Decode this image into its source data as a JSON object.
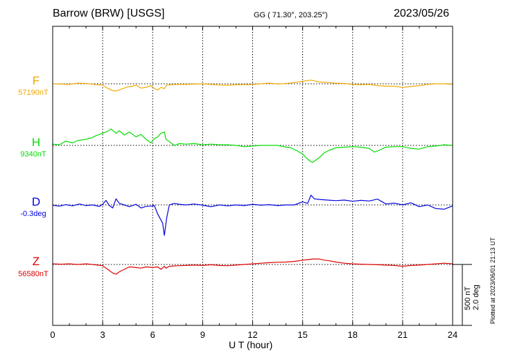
{
  "header": {
    "station": "Barrow (BRW)  [USGS]",
    "coords": "GG ( 71.30°, 203.25°)",
    "date": "2023/05/26"
  },
  "footer": {
    "plotted": "Plotted at 2023/06/01 21:13 UT",
    "scale_nt": "500 nT",
    "scale_deg": "2.0 deg"
  },
  "chart_data": {
    "type": "line",
    "xlabel": "U T (hour)",
    "xlim": [
      0,
      24
    ],
    "xticks": [
      0,
      3,
      6,
      9,
      12,
      15,
      18,
      21,
      24
    ],
    "grid": true,
    "series": [
      {
        "name": "F",
        "baseline_label": "57190nT",
        "color": "#f0a800",
        "x": [
          0,
          0.5,
          1,
          1.5,
          2,
          2.5,
          3,
          3.2,
          3.5,
          3.7,
          3.9,
          4.2,
          4.5,
          4.8,
          5,
          5.3,
          5.6,
          5.9,
          6.1,
          6.3,
          6.5,
          6.7,
          6.8,
          7,
          7.5,
          8,
          8.5,
          9,
          9.5,
          10,
          10.5,
          11,
          11.5,
          12,
          12.5,
          13,
          13.5,
          14,
          14.5,
          15,
          15.5,
          16,
          16.5,
          17,
          17.5,
          18,
          18.5,
          19,
          19.5,
          20,
          20.5,
          21,
          21.5,
          22,
          22.5,
          23,
          23.5,
          24
        ],
        "y": [
          57190,
          57188,
          57185,
          57195,
          57192,
          57185,
          57180,
          57160,
          57140,
          57130,
          57135,
          57150,
          57165,
          57170,
          57180,
          57155,
          57160,
          57175,
          57150,
          57140,
          57160,
          57150,
          57175,
          57182,
          57185,
          57185,
          57188,
          57190,
          57185,
          57180,
          57178,
          57182,
          57182,
          57185,
          57190,
          57195,
          57188,
          57192,
          57200,
          57210,
          57220,
          57205,
          57200,
          57195,
          57192,
          57185,
          57182,
          57185,
          57175,
          57170,
          57170,
          57160,
          57168,
          57175,
          57185,
          57190,
          57190,
          57185
        ]
      },
      {
        "name": "H",
        "baseline_label": "9340nT",
        "color": "#00dd00",
        "x": [
          0,
          0.4,
          0.8,
          1.2,
          1.5,
          2,
          2.3,
          2.6,
          3,
          3.3,
          3.5,
          3.8,
          4,
          4.3,
          4.6,
          5,
          5.3,
          5.6,
          5.9,
          6.1,
          6.3,
          6.5,
          6.7,
          6.8,
          7,
          7.3,
          7.6,
          8,
          8.5,
          9,
          9.5,
          10,
          10.5,
          11,
          11.5,
          12,
          12.5,
          13,
          13.5,
          14,
          14.3,
          14.6,
          15,
          15.2,
          15.4,
          15.6,
          15.8,
          16,
          16.3,
          16.6,
          17,
          17.5,
          18,
          18.5,
          19,
          19.3,
          19.6,
          20,
          20.5,
          21,
          21.5,
          22,
          22.5,
          23,
          23.5,
          24
        ],
        "y": [
          9350,
          9345,
          9375,
          9360,
          9380,
          9390,
          9400,
          9420,
          9440,
          9455,
          9475,
          9440,
          9460,
          9425,
          9450,
          9410,
          9430,
          9390,
          9360,
          9395,
          9410,
          9440,
          9450,
          9390,
          9370,
          9340,
          9355,
          9350,
          9355,
          9345,
          9350,
          9345,
          9345,
          9340,
          9330,
          9335,
          9340,
          9340,
          9340,
          9325,
          9320,
          9300,
          9270,
          9240,
          9215,
          9200,
          9220,
          9240,
          9280,
          9300,
          9320,
          9325,
          9330,
          9325,
          9315,
          9285,
          9300,
          9325,
          9330,
          9330,
          9315,
          9310,
          9330,
          9335,
          9345,
          9340
        ]
      },
      {
        "name": "D",
        "baseline_label": "-0.3deg",
        "color": "#0000dd",
        "x": [
          0,
          0.4,
          0.8,
          1.2,
          1.6,
          2,
          2.4,
          2.8,
          3,
          3.2,
          3.4,
          3.6,
          3.8,
          4,
          4.3,
          4.6,
          5,
          5.3,
          5.6,
          5.9,
          6.1,
          6.3,
          6.45,
          6.6,
          6.7,
          6.75,
          6.85,
          7,
          7.3,
          7.6,
          8,
          8.5,
          9,
          9.5,
          10,
          10.5,
          11,
          11.5,
          12,
          12.5,
          13,
          13.5,
          14,
          14.5,
          15,
          15.3,
          15.5,
          15.7,
          16,
          16.5,
          17,
          17.5,
          18,
          18.5,
          19,
          19.5,
          20,
          20.5,
          21,
          21.5,
          22,
          22.5,
          23,
          23.5,
          24
        ],
        "y": [
          -0.31,
          -0.34,
          -0.29,
          -0.33,
          -0.27,
          -0.32,
          -0.3,
          -0.35,
          -0.28,
          -0.15,
          -0.32,
          -0.4,
          -0.1,
          -0.25,
          -0.3,
          -0.36,
          -0.28,
          -0.4,
          -0.35,
          -0.34,
          -0.32,
          -0.6,
          -0.75,
          -0.9,
          -1.3,
          -1.1,
          -0.7,
          -0.3,
          -0.25,
          -0.28,
          -0.3,
          -0.27,
          -0.31,
          -0.36,
          -0.3,
          -0.33,
          -0.3,
          -0.32,
          -0.28,
          -0.31,
          -0.29,
          -0.32,
          -0.3,
          -0.3,
          -0.2,
          -0.25,
          0.02,
          -0.1,
          -0.12,
          -0.14,
          -0.16,
          -0.14,
          -0.18,
          -0.15,
          -0.17,
          -0.11,
          -0.27,
          -0.24,
          -0.3,
          -0.23,
          -0.36,
          -0.3,
          -0.42,
          -0.44,
          -0.33
        ]
      },
      {
        "name": "Z",
        "baseline_label": "56580nT",
        "color": "#dd0000",
        "x": [
          0,
          0.5,
          1,
          1.5,
          2,
          2.5,
          3,
          3.3,
          3.6,
          3.8,
          4,
          4.3,
          4.6,
          5,
          5.3,
          5.6,
          6,
          6.3,
          6.5,
          6.7,
          6.8,
          7,
          7.5,
          8,
          8.5,
          9,
          9.5,
          10,
          10.5,
          11,
          11.5,
          12,
          12.5,
          13,
          13.5,
          14,
          14.5,
          15,
          15.3,
          15.6,
          16,
          16.3,
          16.6,
          17,
          17.5,
          18,
          18.5,
          19,
          19.5,
          20,
          20.5,
          21,
          21.5,
          22,
          22.5,
          23,
          23.5,
          24
        ],
        "y": [
          56585,
          56582,
          56585,
          56580,
          56585,
          56578,
          56570,
          56540,
          56510,
          56500,
          56520,
          56540,
          56560,
          56555,
          56550,
          56560,
          56555,
          56560,
          56540,
          56565,
          56550,
          56565,
          56570,
          56572,
          56575,
          56572,
          56578,
          56572,
          56570,
          56575,
          56580,
          56585,
          56590,
          56595,
          56598,
          56600,
          56605,
          56615,
          56620,
          56625,
          56625,
          56615,
          56610,
          56600,
          56590,
          56585,
          56582,
          56580,
          56578,
          56575,
          56572,
          56565,
          56572,
          56575,
          56580,
          56585,
          56590,
          56585
        ]
      }
    ]
  }
}
